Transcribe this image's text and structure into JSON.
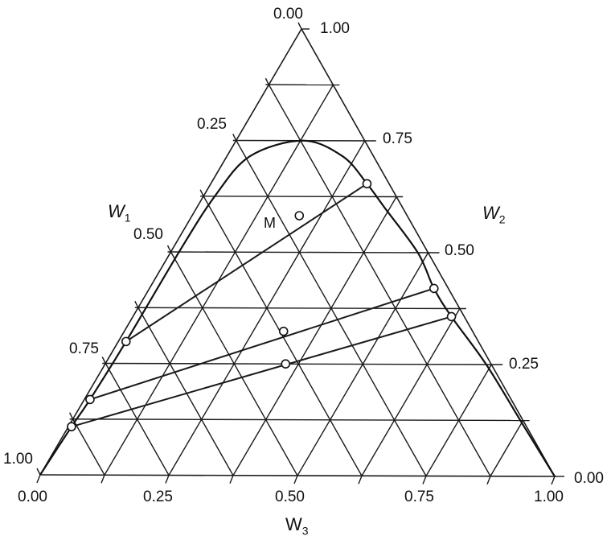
{
  "chart_data": {
    "type": "ternary",
    "axes": {
      "left": {
        "label": "W",
        "sub": "1",
        "ticks": [
          "0.00",
          "0.25",
          "0.50",
          "0.75",
          "1.00"
        ]
      },
      "right": {
        "label": "W",
        "sub": "2",
        "ticks": [
          "1.00",
          "0.75",
          "0.50",
          "0.25",
          "0.00"
        ]
      },
      "bottom": {
        "label": "W",
        "sub": "3",
        "ticks": [
          "0.00",
          "0.25",
          "0.50",
          "0.75",
          "1.00"
        ]
      }
    },
    "grid": true,
    "grid_step": 0.125,
    "binodal_curve": [
      [
        1,
        0,
        0
      ],
      [
        0.886,
        0.108,
        0.006
      ],
      [
        0.82,
        0.169,
        0.011
      ],
      [
        0.686,
        0.299,
        0.015
      ],
      [
        0.484,
        0.5,
        0.016
      ],
      [
        0.353,
        0.625,
        0.022
      ],
      [
        0.24,
        0.715,
        0.045
      ],
      [
        0.12,
        0.75,
        0.13
      ],
      [
        0.06,
        0.715,
        0.225
      ],
      [
        0.043,
        0.654,
        0.303
      ],
      [
        0.035,
        0.6,
        0.365
      ],
      [
        0.02,
        0.5,
        0.48
      ],
      [
        0.028,
        0.42,
        0.552
      ],
      [
        0.025,
        0.357,
        0.618
      ],
      [
        0.01,
        0.25,
        0.74
      ],
      [
        0.005,
        0.12,
        0.875
      ],
      [
        0,
        0,
        1
      ]
    ],
    "tie_lines": [
      {
        "from": [
          0.686,
          0.299,
          0.015
        ],
        "to": [
          0.043,
          0.654,
          0.303
        ]
      },
      {
        "from": [
          0.82,
          0.169,
          0.011
        ],
        "to": [
          0.028,
          0.42,
          0.552
        ]
      },
      {
        "from": [
          0.886,
          0.108,
          0.006
        ],
        "to": [
          0.025,
          0.357,
          0.618
        ]
      }
    ],
    "points": [
      {
        "label": "M",
        "w": [
          0.21,
          0.582,
          0.208
        ]
      },
      {
        "label": "",
        "w": [
          0.368,
          0.323,
          0.309
        ]
      },
      {
        "label": "",
        "w": [
          0.4,
          0.25,
          0.35
        ]
      }
    ],
    "point_label": "M"
  }
}
